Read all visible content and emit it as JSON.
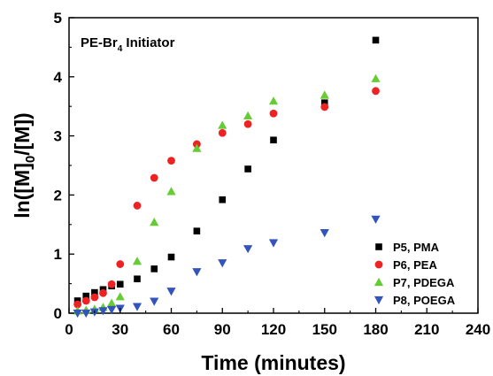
{
  "chart_data": {
    "type": "scatter",
    "title": "PE-Br",
    "title_sub": "4",
    "title_suffix": " Initiator",
    "xlabel": "Time (minutes)",
    "ylabel_parts": {
      "a": "ln([M]",
      "sub": "0",
      "b": "/[M])"
    },
    "xlim": [
      0,
      240
    ],
    "ylim": [
      0,
      5
    ],
    "xticks": [
      0,
      30,
      60,
      90,
      120,
      150,
      180,
      210,
      240
    ],
    "yticks": [
      0,
      1,
      2,
      3,
      4,
      5
    ],
    "grid": false,
    "legend_position": "bottom-right",
    "series": [
      {
        "name": "P5, PMA",
        "marker": "square",
        "color": "#000000",
        "x": [
          5,
          10,
          15,
          20,
          25,
          30,
          40,
          50,
          60,
          75,
          90,
          105,
          120,
          150,
          180
        ],
        "y": [
          0.21,
          0.29,
          0.35,
          0.4,
          0.46,
          0.49,
          0.58,
          0.75,
          0.95,
          1.39,
          1.92,
          2.44,
          2.93,
          3.56,
          4.62
        ]
      },
      {
        "name": "P6, PEA",
        "marker": "circle",
        "color": "#ee2222",
        "x": [
          5,
          10,
          15,
          20,
          25,
          30,
          40,
          50,
          60,
          75,
          90,
          105,
          120,
          150,
          180
        ],
        "y": [
          0.15,
          0.21,
          0.27,
          0.34,
          0.49,
          0.83,
          1.82,
          2.29,
          2.58,
          2.86,
          3.05,
          3.2,
          3.38,
          3.49,
          3.76
        ]
      },
      {
        "name": "P7, PDEGA",
        "marker": "triangle-up",
        "color": "#66cc33",
        "x": [
          5,
          10,
          15,
          20,
          25,
          30,
          40,
          50,
          60,
          75,
          90,
          105,
          120,
          150,
          180
        ],
        "y": [
          0.04,
          0.05,
          0.07,
          0.1,
          0.17,
          0.28,
          0.88,
          1.54,
          2.06,
          2.79,
          3.18,
          3.34,
          3.59,
          3.69,
          3.97
        ]
      },
      {
        "name": "P8, POEGA",
        "marker": "triangle-down",
        "color": "#3355bb",
        "x": [
          5,
          10,
          15,
          20,
          25,
          30,
          40,
          50,
          60,
          75,
          90,
          105,
          120,
          150,
          180
        ],
        "y": [
          0.0,
          0.0,
          0.02,
          0.04,
          0.06,
          0.08,
          0.11,
          0.2,
          0.37,
          0.7,
          0.85,
          1.09,
          1.19,
          1.36,
          1.59
        ]
      }
    ]
  }
}
